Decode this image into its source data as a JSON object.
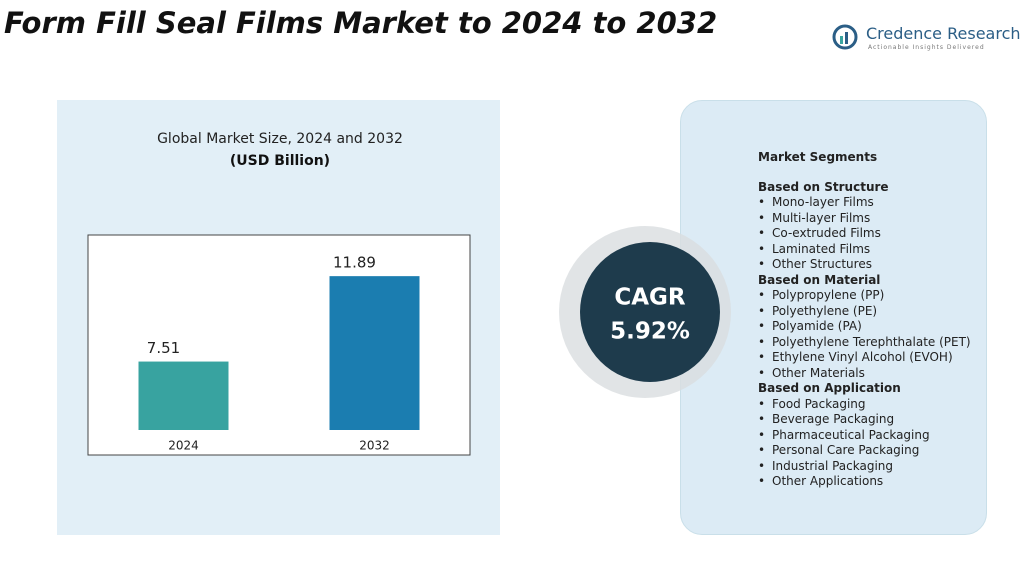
{
  "title": "Form Fill Seal Films Market to 2024 to 2032",
  "logo": {
    "name": "Credence Research",
    "tagline": "Actionable Insights Delivered"
  },
  "chart_data": {
    "type": "bar",
    "title": "Global Market Size, 2024 and 2032",
    "subtitle": "(USD Billion)",
    "categories": [
      "2024",
      "2032"
    ],
    "values": [
      7.51,
      11.89
    ],
    "colors": [
      "#38a3a0",
      "#1b7db0"
    ],
    "ylim": [
      4,
      14
    ]
  },
  "cagr": {
    "label": "CAGR",
    "value": "5.92%"
  },
  "segments": {
    "title": "Market Segments",
    "groups": [
      {
        "heading": "Based on Structure",
        "items": [
          "Mono-layer Films",
          "Multi-layer Films",
          "Co-extruded Films",
          "Laminated Films",
          "Other Structures"
        ]
      },
      {
        "heading": "Based on Material",
        "items": [
          "Polypropylene (PP)",
          "Polyethylene (PE)",
          "Polyamide (PA)",
          "Polyethylene Terephthalate (PET)",
          "Ethylene Vinyl Alcohol (EVOH)",
          "Other Materials"
        ]
      },
      {
        "heading": "Based on Application",
        "items": [
          "Food Packaging",
          "Beverage Packaging",
          "Pharmaceutical Packaging",
          "Personal Care Packaging",
          "Industrial Packaging",
          "Other Applications"
        ]
      }
    ]
  }
}
